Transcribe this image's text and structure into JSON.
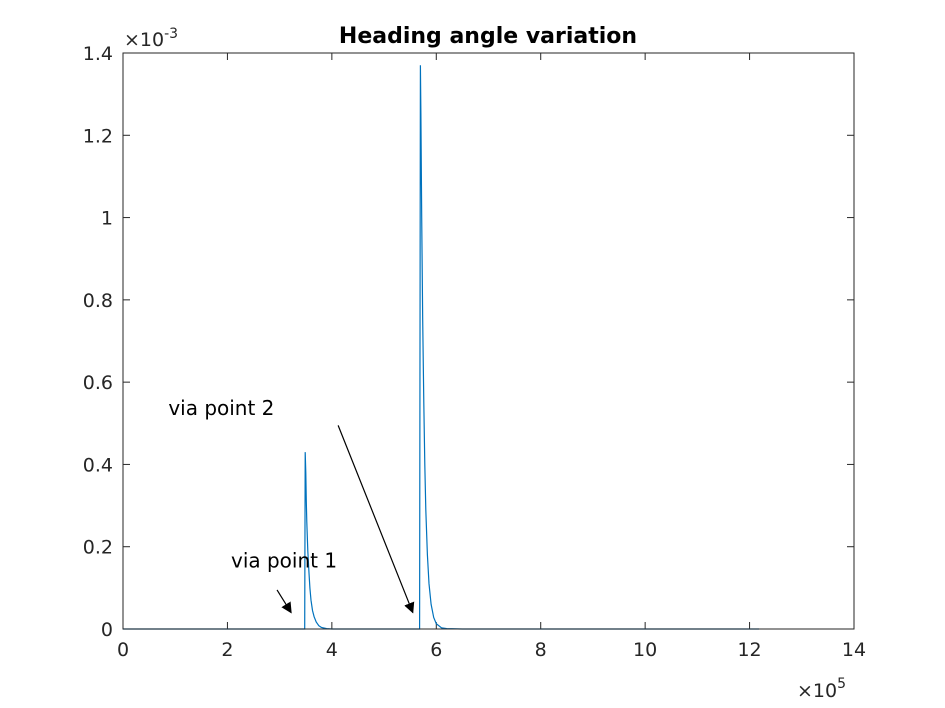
{
  "chart_data": {
    "type": "line",
    "title": "Heading angle variation",
    "xlabel": "",
    "ylabel": "",
    "xlim": [
      0,
      1400000
    ],
    "ylim": [
      0,
      0.0014
    ],
    "x_ticks": [
      0,
      200000,
      400000,
      600000,
      800000,
      1000000,
      1200000,
      1400000
    ],
    "x_tick_labels": [
      "0",
      "2",
      "4",
      "6",
      "8",
      "10",
      "12",
      "14"
    ],
    "y_ticks": [
      0,
      0.0002,
      0.0004,
      0.0006,
      0.0008,
      0.001,
      0.0012,
      0.0014
    ],
    "y_tick_labels": [
      "0",
      "0.2",
      "0.4",
      "0.6",
      "0.8",
      "1",
      "1.2",
      "1.4"
    ],
    "x_exponent": {
      "base": "×10",
      "power": "5"
    },
    "y_exponent": {
      "base": "×10",
      "power": "-3"
    },
    "grid": false,
    "series": [
      {
        "color": "#0072BD",
        "x": [
          0,
          200000,
          348000,
          349000,
          350000,
          351000,
          352000,
          354000,
          356000,
          358000,
          360000,
          363000,
          366000,
          370000,
          375000,
          380000,
          390000,
          400000,
          450000,
          500000,
          540000,
          568000,
          569500,
          570500,
          572000,
          574000,
          576000,
          578000,
          580000,
          583000,
          586000,
          590000,
          595000,
          600000,
          610000,
          620000,
          650000,
          700000,
          900000,
          1100000,
          1218000
        ],
        "y": [
          0,
          0,
          0,
          0.00043,
          0.00038,
          0.00031,
          0.00026,
          0.00019,
          0.00014,
          0.0001,
          7e-05,
          4.5e-05,
          3e-05,
          1.7e-05,
          8e-06,
          4e-06,
          1e-06,
          0,
          0,
          0,
          0,
          0,
          0.00137,
          0.00125,
          0.001,
          0.00075,
          0.00055,
          0.0004,
          0.00029,
          0.00018,
          0.00011,
          6e-05,
          2.8e-05,
          1.3e-05,
          3e-06,
          1e-06,
          0,
          0,
          0,
          0,
          0
        ]
      }
    ],
    "annotations": [
      {
        "text": "via point 1",
        "text_x": 410000,
        "text_y": 0.00015,
        "arrow_from": [
          295000,
          9.5e-05
        ],
        "arrow_to": [
          322000,
          4e-05
        ]
      },
      {
        "text": "via point 2",
        "text_x": 290000,
        "text_y": 0.00052,
        "arrow_from": [
          412000,
          0.000495
        ],
        "arrow_to": [
          555000,
          4e-05
        ]
      }
    ]
  }
}
